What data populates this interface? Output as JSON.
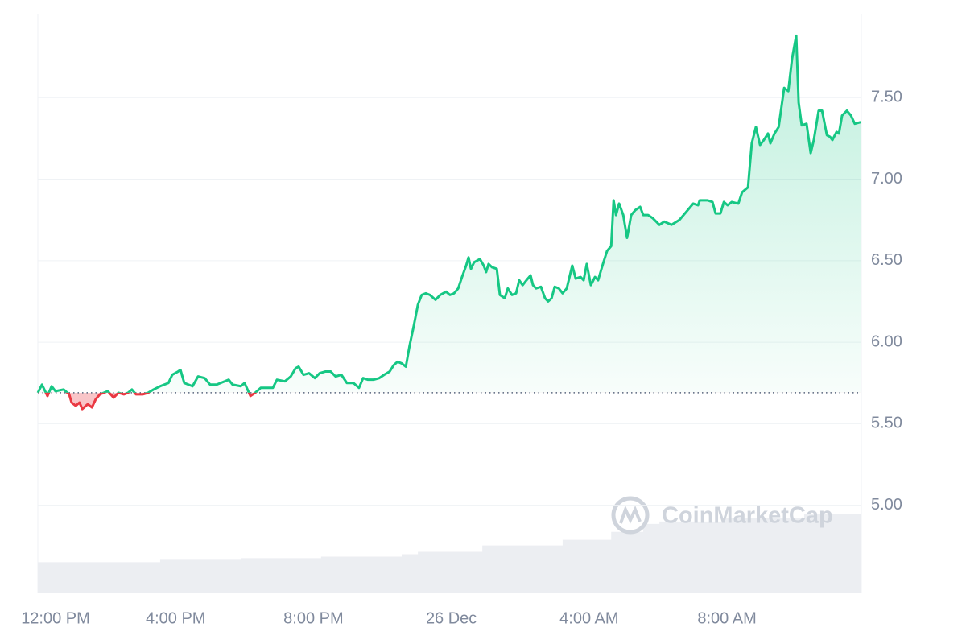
{
  "chart_data": {
    "type": "line",
    "watermark": "CoinMarketCap",
    "color": "#16c784",
    "down_color": "#ea3943",
    "baseline": 5.69,
    "grid": true,
    "xlim": [
      0,
      23.9
    ],
    "ylim": [
      4.46,
      8.01
    ],
    "xticks": [
      {
        "value": 0,
        "label": "12:00 PM"
      },
      {
        "value": 4,
        "label": "4:00 PM"
      },
      {
        "value": 8,
        "label": "8:00 PM"
      },
      {
        "value": 12,
        "label": "26 Dec"
      },
      {
        "value": 16,
        "label": "4:00 AM"
      },
      {
        "value": 20,
        "label": "8:00 AM"
      }
    ],
    "yticks": [
      {
        "value": 5,
        "label": "5.00"
      },
      {
        "value": 5.5,
        "label": "5.50"
      },
      {
        "value": 6,
        "label": "6.00"
      },
      {
        "value": 6.5,
        "label": "6.50"
      },
      {
        "value": 7,
        "label": "7.00"
      },
      {
        "value": 7.5,
        "label": "7.50"
      }
    ],
    "x": [
      0,
      0.12,
      0.28,
      0.4,
      0.51,
      0.75,
      0.91,
      0.98,
      1.1,
      1.21,
      1.29,
      1.45,
      1.57,
      1.68,
      1.8,
      2.03,
      2.2,
      2.34,
      2.5,
      2.62,
      2.73,
      2.85,
      3.04,
      3.2,
      3.36,
      3.55,
      3.79,
      3.9,
      4.07,
      4.14,
      4.25,
      4.49,
      4.65,
      4.84,
      5.0,
      5.19,
      5.42,
      5.54,
      5.65,
      5.89,
      6.0,
      6.17,
      6.31,
      6.47,
      6.71,
      6.82,
      6.94,
      7.17,
      7.34,
      7.48,
      7.57,
      7.71,
      7.87,
      8.04,
      8.18,
      8.34,
      8.5,
      8.64,
      8.81,
      8.97,
      9.16,
      9.32,
      9.44,
      9.58,
      9.74,
      9.91,
      10.05,
      10.21,
      10.33,
      10.44,
      10.56,
      10.68,
      10.79,
      10.91,
      11.03,
      11.14,
      11.26,
      11.38,
      11.54,
      11.68,
      11.85,
      11.96,
      12.08,
      12.2,
      12.31,
      12.43,
      12.5,
      12.57,
      12.66,
      12.83,
      12.94,
      13.01,
      13.08,
      13.18,
      13.32,
      13.41,
      13.55,
      13.64,
      13.76,
      13.88,
      13.97,
      14.07,
      14.18,
      14.3,
      14.37,
      14.46,
      14.6,
      14.72,
      14.81,
      14.91,
      15.0,
      15.12,
      15.23,
      15.35,
      15.51,
      15.61,
      15.75,
      15.84,
      15.93,
      16.05,
      16.17,
      16.26,
      16.4,
      16.52,
      16.64,
      16.71,
      16.78,
      16.87,
      16.99,
      17.1,
      17.22,
      17.34,
      17.48,
      17.57,
      17.71,
      17.85,
      18.04,
      18.18,
      18.39,
      18.62,
      18.86,
      19.02,
      19.16,
      19.21,
      19.44,
      19.58,
      19.67,
      19.81,
      19.91,
      20.02,
      20.14,
      20.33,
      20.44,
      20.61,
      20.72,
      20.84,
      20.96,
      21.07,
      21.19,
      21.26,
      21.38,
      21.5,
      21.66,
      21.78,
      21.89,
      22.01,
      22.08,
      22.17,
      22.31,
      22.43,
      22.52,
      22.66,
      22.76,
      22.9,
      22.99,
      23.06,
      23.18,
      23.25,
      23.34,
      23.48,
      23.6,
      23.71,
      23.88
    ],
    "values": [
      5.69,
      5.74,
      5.67,
      5.73,
      5.7,
      5.71,
      5.68,
      5.63,
      5.61,
      5.63,
      5.59,
      5.62,
      5.6,
      5.65,
      5.68,
      5.7,
      5.66,
      5.69,
      5.68,
      5.69,
      5.71,
      5.68,
      5.68,
      5.69,
      5.71,
      5.73,
      5.75,
      5.8,
      5.82,
      5.83,
      5.75,
      5.73,
      5.79,
      5.78,
      5.74,
      5.74,
      5.76,
      5.77,
      5.74,
      5.73,
      5.75,
      5.67,
      5.69,
      5.72,
      5.72,
      5.72,
      5.77,
      5.76,
      5.79,
      5.84,
      5.85,
      5.8,
      5.81,
      5.78,
      5.81,
      5.82,
      5.82,
      5.79,
      5.8,
      5.75,
      5.75,
      5.72,
      5.78,
      5.77,
      5.77,
      5.78,
      5.8,
      5.82,
      5.86,
      5.88,
      5.87,
      5.85,
      5.98,
      6.1,
      6.23,
      6.29,
      6.3,
      6.29,
      6.26,
      6.29,
      6.31,
      6.29,
      6.3,
      6.33,
      6.4,
      6.47,
      6.52,
      6.45,
      6.49,
      6.51,
      6.47,
      6.43,
      6.48,
      6.46,
      6.45,
      6.29,
      6.27,
      6.33,
      6.29,
      6.3,
      6.38,
      6.35,
      6.38,
      6.41,
      6.35,
      6.33,
      6.34,
      6.27,
      6.25,
      6.27,
      6.34,
      6.33,
      6.3,
      6.33,
      6.47,
      6.39,
      6.4,
      6.38,
      6.48,
      6.35,
      6.4,
      6.38,
      6.48,
      6.56,
      6.59,
      6.87,
      6.78,
      6.85,
      6.78,
      6.64,
      6.78,
      6.81,
      6.83,
      6.78,
      6.78,
      6.76,
      6.72,
      6.74,
      6.72,
      6.75,
      6.81,
      6.85,
      6.84,
      6.87,
      6.87,
      6.86,
      6.79,
      6.79,
      6.86,
      6.84,
      6.86,
      6.85,
      6.92,
      6.95,
      7.22,
      7.32,
      7.21,
      7.24,
      7.28,
      7.22,
      7.28,
      7.32,
      7.56,
      7.54,
      7.74,
      7.88,
      7.47,
      7.33,
      7.34,
      7.16,
      7.24,
      7.42,
      7.42,
      7.27,
      7.26,
      7.24,
      7.29,
      7.28,
      7.39,
      7.42,
      7.39,
      7.34,
      7.35
    ],
    "volume": {
      "color": "#eceef2",
      "ylim": [
        0,
        726
      ],
      "x": [
        0,
        3.55,
        5.89,
        8.22,
        10.56,
        11.03,
        12.9,
        15.23,
        16.64,
        17.57,
        18.04,
        19.91,
        22.24,
        23.88
      ],
      "values": [
        39,
        42,
        44,
        46,
        49,
        52,
        60,
        67,
        77,
        87,
        90,
        94,
        99,
        99
      ]
    }
  }
}
